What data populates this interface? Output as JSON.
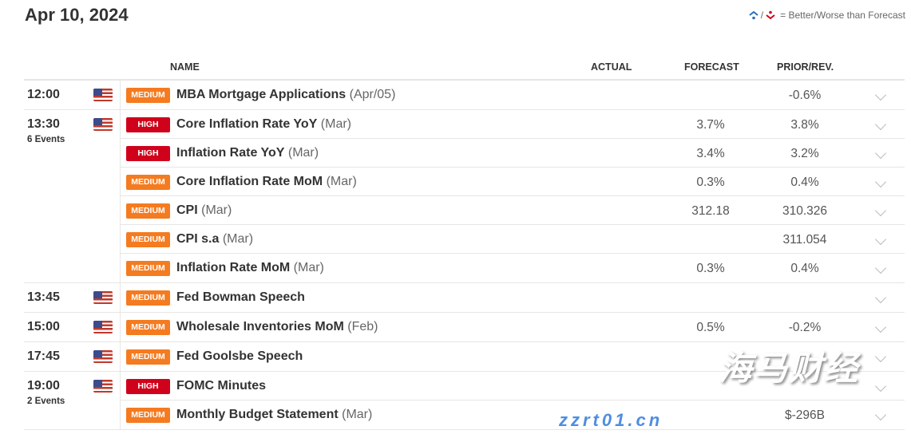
{
  "date": "Apr 10, 2024",
  "legend": {
    "text": "= Better/Worse than Forecast",
    "better_icon": "arrow-up-dot-icon",
    "worse_icon": "arrow-down-dot-icon",
    "better_color": "#2a6ebb",
    "worse_color": "#d0021b",
    "sep": "/"
  },
  "columns": {
    "name": "NAME",
    "actual": "ACTUAL",
    "forecast": "FORECAST",
    "prior": "PRIOR/REV."
  },
  "colors": {
    "medium": "#f47b20",
    "high": "#d0021b"
  },
  "rows": [
    {
      "time": "12:00",
      "events": "",
      "impact": "MEDIUM",
      "name": "MBA Mortgage Applications",
      "period": "(Apr/05)",
      "actual": "",
      "forecast": "",
      "prior": "-0.6%"
    },
    {
      "time": "13:30",
      "events": "6 Events",
      "impact": "HIGH",
      "name": "Core Inflation Rate YoY",
      "period": "(Mar)",
      "actual": "",
      "forecast": "3.7%",
      "prior": "3.8%"
    },
    {
      "time": "",
      "events": "",
      "impact": "HIGH",
      "name": "Inflation Rate YoY",
      "period": "(Mar)",
      "actual": "",
      "forecast": "3.4%",
      "prior": "3.2%"
    },
    {
      "time": "",
      "events": "",
      "impact": "MEDIUM",
      "name": "Core Inflation Rate MoM",
      "period": "(Mar)",
      "actual": "",
      "forecast": "0.3%",
      "prior": "0.4%"
    },
    {
      "time": "",
      "events": "",
      "impact": "MEDIUM",
      "name": "CPI",
      "period": "(Mar)",
      "actual": "",
      "forecast": "312.18",
      "prior": "310.326"
    },
    {
      "time": "",
      "events": "",
      "impact": "MEDIUM",
      "name": "CPI s.a",
      "period": "(Mar)",
      "actual": "",
      "forecast": "",
      "prior": "311.054"
    },
    {
      "time": "",
      "events": "",
      "impact": "MEDIUM",
      "name": "Inflation Rate MoM",
      "period": "(Mar)",
      "actual": "",
      "forecast": "0.3%",
      "prior": "0.4%"
    },
    {
      "time": "13:45",
      "events": "",
      "impact": "MEDIUM",
      "name": "Fed Bowman Speech",
      "period": "",
      "actual": "",
      "forecast": "",
      "prior": ""
    },
    {
      "time": "15:00",
      "events": "",
      "impact": "MEDIUM",
      "name": "Wholesale Inventories MoM",
      "period": "(Feb)",
      "actual": "",
      "forecast": "0.5%",
      "prior": "-0.2%"
    },
    {
      "time": "17:45",
      "events": "",
      "impact": "MEDIUM",
      "name": "Fed Goolsbe Speech",
      "period": "",
      "actual": "",
      "forecast": "",
      "prior": ""
    },
    {
      "time": "19:00",
      "events": "2 Events",
      "impact": "HIGH",
      "name": "FOMC Minutes",
      "period": "",
      "actual": "",
      "forecast": "",
      "prior": ""
    },
    {
      "time": "",
      "events": "",
      "impact": "MEDIUM",
      "name": "Monthly Budget Statement",
      "period": "(Mar)",
      "actual": "",
      "forecast": "",
      "prior": "$-296B"
    }
  ],
  "watermark": {
    "cn": "海马财经",
    "url": "zzrt01.cn"
  }
}
